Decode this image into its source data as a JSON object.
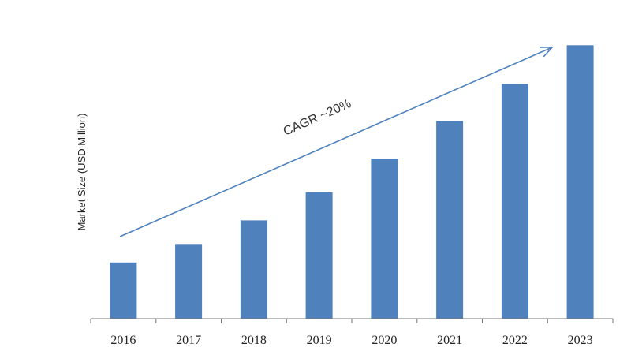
{
  "chart_data": {
    "type": "bar",
    "categories": [
      "2016",
      "2017",
      "2018",
      "2019",
      "2020",
      "2021",
      "2022",
      "2023"
    ],
    "values": [
      100,
      133,
      175,
      225,
      285,
      352,
      418,
      487
    ],
    "ylabel": "Market Size (USD Million)",
    "xlabel": "",
    "ylim": [
      0,
      500
    ],
    "grid": false,
    "legend": "none",
    "annotation": "CAGR ~20%",
    "colors": {
      "bar": "#4f81bd",
      "arrow": "#4f81bd",
      "axis": "#777777"
    }
  }
}
